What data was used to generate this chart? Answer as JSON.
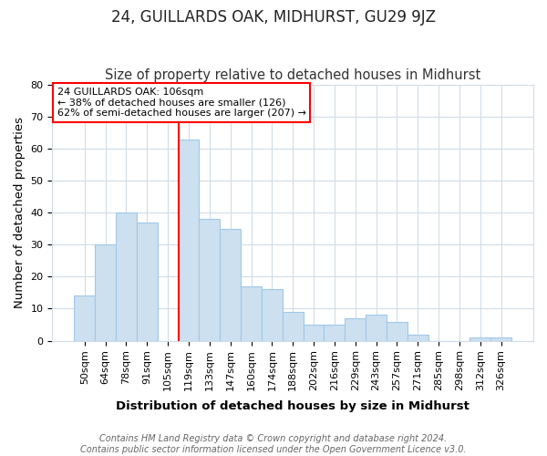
{
  "title": "24, GUILLARDS OAK, MIDHURST, GU29 9JZ",
  "subtitle": "Size of property relative to detached houses in Midhurst",
  "xlabel": "Distribution of detached houses by size in Midhurst",
  "ylabel": "Number of detached properties",
  "footnote1": "Contains HM Land Registry data © Crown copyright and database right 2024.",
  "footnote2": "Contains public sector information licensed under the Open Government Licence v3.0.",
  "bin_labels": [
    "50sqm",
    "64sqm",
    "78sqm",
    "91sqm",
    "105sqm",
    "119sqm",
    "133sqm",
    "147sqm",
    "160sqm",
    "174sqm",
    "188sqm",
    "202sqm",
    "216sqm",
    "229sqm",
    "243sqm",
    "257sqm",
    "271sqm",
    "285sqm",
    "298sqm",
    "312sqm",
    "326sqm"
  ],
  "bar_heights": [
    14,
    30,
    40,
    37,
    0,
    63,
    38,
    35,
    17,
    16,
    9,
    5,
    5,
    7,
    8,
    6,
    2,
    0,
    0,
    1,
    1
  ],
  "bar_color": "#cce0f0",
  "bar_edge_color": "#a0c8e8",
  "red_line_index": 5,
  "annotation_title": "24 GUILLARDS OAK: 106sqm",
  "annotation_line1": "← 38% of detached houses are smaller (126)",
  "annotation_line2": "62% of semi-detached houses are larger (207) →",
  "ylim": [
    0,
    80
  ],
  "yticks": [
    0,
    10,
    20,
    30,
    40,
    50,
    60,
    70,
    80
  ],
  "background_color": "#ffffff",
  "plot_bg_color": "#ffffff",
  "grid_color": "#d0dce8",
  "title_fontsize": 12,
  "subtitle_fontsize": 10.5,
  "axis_label_fontsize": 9.5,
  "tick_fontsize": 8,
  "footnote_fontsize": 7,
  "annot_fontsize": 8
}
